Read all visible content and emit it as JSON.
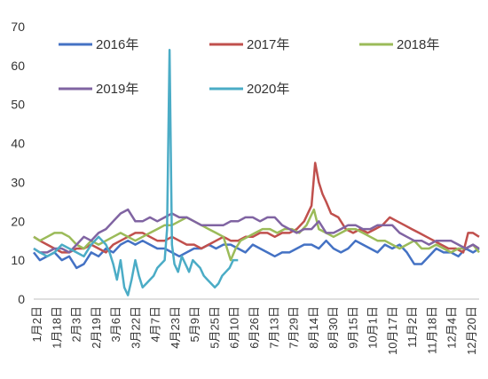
{
  "chart_data": {
    "type": "line",
    "ylim": [
      0,
      70
    ],
    "yticks": [
      0,
      10,
      20,
      30,
      40,
      50,
      60,
      70
    ],
    "grid": false,
    "legend_placement": "top-left",
    "x_categories": [
      "1月2日",
      "1月18日",
      "2月3日",
      "2月19日",
      "3月6日",
      "3月22日",
      "4月7日",
      "4月23日",
      "5月9日",
      "5月25日",
      "6月10日",
      "6月26日",
      "7月13日",
      "7月29日",
      "8月14日",
      "8月30日",
      "9月15日",
      "10月1日",
      "10月17日",
      "11月2日",
      "11月18日",
      "12月4日",
      "12月20日"
    ],
    "x_range_days": [
      1,
      365
    ],
    "series": [
      {
        "name": "2016年",
        "color": "#4472C4",
        "points": [
          [
            1,
            12
          ],
          [
            6,
            10
          ],
          [
            12,
            11
          ],
          [
            18,
            12
          ],
          [
            24,
            10
          ],
          [
            30,
            11
          ],
          [
            36,
            8
          ],
          [
            42,
            9
          ],
          [
            48,
            12
          ],
          [
            54,
            11
          ],
          [
            60,
            13
          ],
          [
            66,
            12
          ],
          [
            72,
            14
          ],
          [
            78,
            15
          ],
          [
            84,
            14
          ],
          [
            90,
            15
          ],
          [
            96,
            14
          ],
          [
            102,
            13
          ],
          [
            108,
            13
          ],
          [
            114,
            12
          ],
          [
            120,
            11
          ],
          [
            126,
            12
          ],
          [
            132,
            13
          ],
          [
            138,
            13
          ],
          [
            144,
            14
          ],
          [
            150,
            13
          ],
          [
            156,
            14
          ],
          [
            162,
            14
          ],
          [
            168,
            13
          ],
          [
            174,
            12
          ],
          [
            180,
            14
          ],
          [
            186,
            13
          ],
          [
            192,
            12
          ],
          [
            198,
            11
          ],
          [
            204,
            12
          ],
          [
            210,
            12
          ],
          [
            216,
            13
          ],
          [
            222,
            14
          ],
          [
            228,
            14
          ],
          [
            234,
            13
          ],
          [
            240,
            15
          ],
          [
            246,
            13
          ],
          [
            252,
            12
          ],
          [
            258,
            13
          ],
          [
            264,
            15
          ],
          [
            270,
            14
          ],
          [
            276,
            13
          ],
          [
            282,
            12
          ],
          [
            288,
            14
          ],
          [
            294,
            13
          ],
          [
            300,
            14
          ],
          [
            306,
            12
          ],
          [
            312,
            9
          ],
          [
            318,
            9
          ],
          [
            324,
            11
          ],
          [
            330,
            13
          ],
          [
            336,
            12
          ],
          [
            342,
            12
          ],
          [
            348,
            11
          ],
          [
            354,
            13
          ],
          [
            360,
            12
          ],
          [
            365,
            13
          ]
        ]
      },
      {
        "name": "2017年",
        "color": "#C0504D",
        "points": [
          [
            1,
            16
          ],
          [
            6,
            15
          ],
          [
            12,
            14
          ],
          [
            18,
            13
          ],
          [
            24,
            12
          ],
          [
            30,
            12
          ],
          [
            36,
            13
          ],
          [
            42,
            13
          ],
          [
            48,
            14
          ],
          [
            54,
            13
          ],
          [
            60,
            12
          ],
          [
            66,
            14
          ],
          [
            72,
            15
          ],
          [
            78,
            16
          ],
          [
            84,
            17
          ],
          [
            90,
            17
          ],
          [
            96,
            16
          ],
          [
            102,
            15
          ],
          [
            108,
            15
          ],
          [
            114,
            16
          ],
          [
            120,
            15
          ],
          [
            126,
            14
          ],
          [
            132,
            14
          ],
          [
            138,
            13
          ],
          [
            144,
            14
          ],
          [
            150,
            15
          ],
          [
            156,
            16
          ],
          [
            162,
            15
          ],
          [
            168,
            15
          ],
          [
            174,
            16
          ],
          [
            180,
            16
          ],
          [
            186,
            17
          ],
          [
            192,
            17
          ],
          [
            198,
            16
          ],
          [
            204,
            17
          ],
          [
            210,
            17
          ],
          [
            216,
            18
          ],
          [
            222,
            20
          ],
          [
            228,
            24
          ],
          [
            231,
            35
          ],
          [
            234,
            30
          ],
          [
            237,
            27
          ],
          [
            240,
            25
          ],
          [
            244,
            22
          ],
          [
            250,
            21
          ],
          [
            256,
            18
          ],
          [
            262,
            17
          ],
          [
            268,
            18
          ],
          [
            274,
            17
          ],
          [
            280,
            18
          ],
          [
            286,
            19
          ],
          [
            292,
            21
          ],
          [
            298,
            20
          ],
          [
            304,
            19
          ],
          [
            310,
            18
          ],
          [
            316,
            17
          ],
          [
            322,
            16
          ],
          [
            328,
            15
          ],
          [
            334,
            14
          ],
          [
            340,
            13
          ],
          [
            346,
            13
          ],
          [
            352,
            12
          ],
          [
            356,
            17
          ],
          [
            360,
            17
          ],
          [
            365,
            16
          ]
        ]
      },
      {
        "name": "2018年",
        "color": "#9BBB59",
        "points": [
          [
            1,
            16
          ],
          [
            6,
            15
          ],
          [
            12,
            16
          ],
          [
            18,
            17
          ],
          [
            24,
            17
          ],
          [
            30,
            16
          ],
          [
            36,
            14
          ],
          [
            42,
            13
          ],
          [
            48,
            15
          ],
          [
            54,
            14
          ],
          [
            60,
            15
          ],
          [
            66,
            16
          ],
          [
            72,
            17
          ],
          [
            78,
            16
          ],
          [
            84,
            15
          ],
          [
            90,
            16
          ],
          [
            96,
            17
          ],
          [
            102,
            18
          ],
          [
            108,
            19
          ],
          [
            114,
            19
          ],
          [
            120,
            20
          ],
          [
            126,
            21
          ],
          [
            132,
            20
          ],
          [
            138,
            19
          ],
          [
            144,
            18
          ],
          [
            150,
            17
          ],
          [
            156,
            16
          ],
          [
            162,
            10
          ],
          [
            166,
            13
          ],
          [
            170,
            15
          ],
          [
            176,
            16
          ],
          [
            182,
            17
          ],
          [
            188,
            18
          ],
          [
            194,
            18
          ],
          [
            200,
            17
          ],
          [
            206,
            18
          ],
          [
            212,
            18
          ],
          [
            218,
            17
          ],
          [
            224,
            19
          ],
          [
            230,
            23
          ],
          [
            234,
            18
          ],
          [
            240,
            17
          ],
          [
            246,
            16
          ],
          [
            252,
            17
          ],
          [
            258,
            18
          ],
          [
            264,
            18
          ],
          [
            270,
            17
          ],
          [
            276,
            16
          ],
          [
            282,
            15
          ],
          [
            288,
            15
          ],
          [
            294,
            14
          ],
          [
            300,
            13
          ],
          [
            306,
            14
          ],
          [
            312,
            15
          ],
          [
            318,
            13
          ],
          [
            324,
            13
          ],
          [
            330,
            14
          ],
          [
            336,
            13
          ],
          [
            342,
            12
          ],
          [
            348,
            13
          ],
          [
            354,
            13
          ],
          [
            360,
            14
          ],
          [
            365,
            12
          ]
        ]
      },
      {
        "name": "2019年",
        "color": "#8064A2",
        "points": [
          [
            1,
            13
          ],
          [
            6,
            12
          ],
          [
            12,
            12
          ],
          [
            18,
            13
          ],
          [
            24,
            13
          ],
          [
            30,
            12
          ],
          [
            36,
            14
          ],
          [
            42,
            16
          ],
          [
            48,
            15
          ],
          [
            54,
            17
          ],
          [
            60,
            18
          ],
          [
            66,
            20
          ],
          [
            72,
            22
          ],
          [
            78,
            23
          ],
          [
            84,
            20
          ],
          [
            90,
            20
          ],
          [
            96,
            21
          ],
          [
            102,
            20
          ],
          [
            108,
            21
          ],
          [
            114,
            22
          ],
          [
            120,
            21
          ],
          [
            126,
            21
          ],
          [
            132,
            20
          ],
          [
            138,
            19
          ],
          [
            144,
            19
          ],
          [
            150,
            19
          ],
          [
            156,
            19
          ],
          [
            162,
            20
          ],
          [
            168,
            20
          ],
          [
            174,
            21
          ],
          [
            180,
            21
          ],
          [
            186,
            20
          ],
          [
            192,
            21
          ],
          [
            198,
            21
          ],
          [
            204,
            19
          ],
          [
            210,
            18
          ],
          [
            216,
            17
          ],
          [
            222,
            18
          ],
          [
            228,
            18
          ],
          [
            234,
            20
          ],
          [
            240,
            17
          ],
          [
            246,
            17
          ],
          [
            252,
            18
          ],
          [
            258,
            19
          ],
          [
            264,
            19
          ],
          [
            270,
            18
          ],
          [
            276,
            18
          ],
          [
            282,
            19
          ],
          [
            288,
            19
          ],
          [
            294,
            19
          ],
          [
            300,
            17
          ],
          [
            306,
            16
          ],
          [
            312,
            15
          ],
          [
            318,
            15
          ],
          [
            324,
            14
          ],
          [
            330,
            15
          ],
          [
            336,
            15
          ],
          [
            342,
            15
          ],
          [
            348,
            14
          ],
          [
            354,
            13
          ],
          [
            360,
            14
          ],
          [
            365,
            13
          ]
        ]
      },
      {
        "name": "2020年",
        "color": "#4BACC6",
        "points": [
          [
            1,
            13
          ],
          [
            6,
            12
          ],
          [
            12,
            11
          ],
          [
            18,
            12
          ],
          [
            24,
            14
          ],
          [
            30,
            13
          ],
          [
            36,
            12
          ],
          [
            42,
            11
          ],
          [
            48,
            14
          ],
          [
            54,
            16
          ],
          [
            60,
            14
          ],
          [
            63,
            12
          ],
          [
            66,
            9
          ],
          [
            69,
            5
          ],
          [
            72,
            10
          ],
          [
            75,
            3
          ],
          [
            78,
            1
          ],
          [
            81,
            5
          ],
          [
            84,
            10
          ],
          [
            87,
            6
          ],
          [
            90,
            3
          ],
          [
            93,
            4
          ],
          [
            96,
            5
          ],
          [
            99,
            6
          ],
          [
            102,
            8
          ],
          [
            105,
            9
          ],
          [
            108,
            10
          ],
          [
            110,
            18
          ],
          [
            112,
            64
          ],
          [
            114,
            14
          ],
          [
            116,
            9
          ],
          [
            119,
            7
          ],
          [
            122,
            11
          ],
          [
            125,
            9
          ],
          [
            128,
            7
          ],
          [
            131,
            10
          ],
          [
            134,
            9
          ],
          [
            137,
            8
          ],
          [
            140,
            6
          ],
          [
            143,
            5
          ],
          [
            146,
            4
          ],
          [
            149,
            3
          ],
          [
            152,
            4
          ],
          [
            155,
            6
          ],
          [
            158,
            7
          ],
          [
            161,
            8
          ],
          [
            164,
            10
          ],
          [
            168,
            10
          ]
        ]
      }
    ]
  }
}
